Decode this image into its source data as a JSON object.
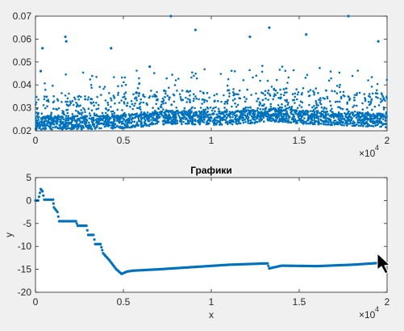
{
  "chart_data": [
    {
      "type": "scatter",
      "title": "",
      "xlabel": "",
      "ylabel": "",
      "xlim": [
        0,
        20000
      ],
      "ylim": [
        0.02,
        0.07
      ],
      "x_exponent_label": "×10",
      "x_exponent_power": "4",
      "xticks": [
        0,
        5000,
        10000,
        15000,
        20000
      ],
      "xtick_labels": [
        "0",
        "0.5",
        "1",
        "1.5",
        "2"
      ],
      "yticks": [
        0.02,
        0.03,
        0.04,
        0.05,
        0.06,
        0.07
      ],
      "ytick_labels": [
        "0.02",
        "0.03",
        "0.04",
        "0.05",
        "0.06",
        "0.07"
      ],
      "grid": false,
      "marker_color": "#0072bd",
      "baseline_band": [
        {
          "x": 0,
          "y": 0.0235
        },
        {
          "x": 2000,
          "y": 0.0235
        },
        {
          "x": 5000,
          "y": 0.024
        },
        {
          "x": 7000,
          "y": 0.0255
        },
        {
          "x": 8000,
          "y": 0.026
        },
        {
          "x": 10000,
          "y": 0.0255
        },
        {
          "x": 12000,
          "y": 0.026
        },
        {
          "x": 13500,
          "y": 0.027
        },
        {
          "x": 15000,
          "y": 0.026
        },
        {
          "x": 17000,
          "y": 0.0255
        },
        {
          "x": 20000,
          "y": 0.0245
        }
      ],
      "notable_points": [
        {
          "x": 300,
          "y": 0.046
        },
        {
          "x": 400,
          "y": 0.056
        },
        {
          "x": 1700,
          "y": 0.061
        },
        {
          "x": 1750,
          "y": 0.059
        },
        {
          "x": 4300,
          "y": 0.056
        },
        {
          "x": 6500,
          "y": 0.048
        },
        {
          "x": 7700,
          "y": 0.07
        },
        {
          "x": 9100,
          "y": 0.064
        },
        {
          "x": 12200,
          "y": 0.061
        },
        {
          "x": 13300,
          "y": 0.065
        },
        {
          "x": 15400,
          "y": 0.062
        },
        {
          "x": 17800,
          "y": 0.07
        },
        {
          "x": 19500,
          "y": 0.059
        }
      ]
    },
    {
      "type": "scatter",
      "title": "Графики",
      "xlabel": "x",
      "ylabel": "y",
      "xlim": [
        0,
        20000
      ],
      "ylim": [
        -20,
        5
      ],
      "x_exponent_label": "×10",
      "x_exponent_power": "4",
      "xticks": [
        0,
        5000,
        10000,
        15000,
        20000
      ],
      "xtick_labels": [
        "0",
        "0.5",
        "1",
        "1.5",
        "2"
      ],
      "yticks": [
        -20,
        -15,
        -10,
        -5,
        0,
        5
      ],
      "ytick_labels": [
        "-20",
        "-15",
        "-10",
        "-5",
        "0",
        "5"
      ],
      "grid": false,
      "marker_color": "#0072bd",
      "points": [
        {
          "x": 0,
          "y": 0
        },
        {
          "x": 150,
          "y": 0
        },
        {
          "x": 300,
          "y": 2.5
        },
        {
          "x": 400,
          "y": 2
        },
        {
          "x": 500,
          "y": 0.2
        },
        {
          "x": 1000,
          "y": 0.2
        },
        {
          "x": 1050,
          "y": -1.5
        },
        {
          "x": 1250,
          "y": -2.5
        },
        {
          "x": 1350,
          "y": -4.5
        },
        {
          "x": 2300,
          "y": -4.5
        },
        {
          "x": 2400,
          "y": -5.5
        },
        {
          "x": 2900,
          "y": -5.5
        },
        {
          "x": 3000,
          "y": -7.5
        },
        {
          "x": 3300,
          "y": -7.5
        },
        {
          "x": 3400,
          "y": -9.5
        },
        {
          "x": 3700,
          "y": -9.5
        },
        {
          "x": 3850,
          "y": -11.5
        },
        {
          "x": 4200,
          "y": -13
        },
        {
          "x": 4600,
          "y": -15
        },
        {
          "x": 4900,
          "y": -16
        },
        {
          "x": 5200,
          "y": -15.5
        },
        {
          "x": 5500,
          "y": -15.3
        },
        {
          "x": 7000,
          "y": -15
        },
        {
          "x": 9000,
          "y": -14.5
        },
        {
          "x": 11000,
          "y": -14
        },
        {
          "x": 13200,
          "y": -13.7
        },
        {
          "x": 13300,
          "y": -14.8
        },
        {
          "x": 14000,
          "y": -14.2
        },
        {
          "x": 16000,
          "y": -14.3
        },
        {
          "x": 18000,
          "y": -14
        },
        {
          "x": 20000,
          "y": -13.5
        }
      ]
    }
  ]
}
